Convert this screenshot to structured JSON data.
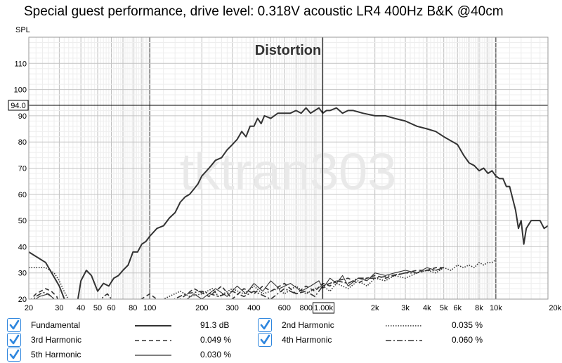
{
  "title": "Special guest performance, drive level: 0.318V acoustic LR4 400Hz B&K @40cm",
  "chart_data": {
    "type": "line",
    "title": "Distortion",
    "ylabel": "SPL",
    "x_scale": "log",
    "xlim": [
      20,
      20000
    ],
    "ylim": [
      20,
      120
    ],
    "grid": true,
    "x_tick_labels": [
      {
        "v": 20,
        "t": "20"
      },
      {
        "v": 30,
        "t": "30"
      },
      {
        "v": 40,
        "t": "40"
      },
      {
        "v": 50,
        "t": "50"
      },
      {
        "v": 60,
        "t": "60"
      },
      {
        "v": 80,
        "t": "80"
      },
      {
        "v": 100,
        "t": "100"
      },
      {
        "v": 200,
        "t": "200"
      },
      {
        "v": 300,
        "t": "300"
      },
      {
        "v": 400,
        "t": "400"
      },
      {
        "v": 600,
        "t": "600"
      },
      {
        "v": 800,
        "t": "800"
      },
      {
        "v": 2000,
        "t": "2k"
      },
      {
        "v": 3000,
        "t": "3k"
      },
      {
        "v": 4000,
        "t": "4k"
      },
      {
        "v": 5000,
        "t": "5k"
      },
      {
        "v": 6000,
        "t": "6k"
      },
      {
        "v": 8000,
        "t": "8k"
      },
      {
        "v": 10000,
        "t": "10k"
      },
      {
        "v": 20000,
        "t": "20kHz"
      }
    ],
    "y_tick_labels": [
      {
        "v": 20,
        "t": "20"
      },
      {
        "v": 30,
        "t": "30"
      },
      {
        "v": 40,
        "t": "40"
      },
      {
        "v": 50,
        "t": "50"
      },
      {
        "v": 60,
        "t": "60"
      },
      {
        "v": 70,
        "t": "70"
      },
      {
        "v": 80,
        "t": "80"
      },
      {
        "v": 90,
        "t": "90"
      },
      {
        "v": 100,
        "t": "100"
      },
      {
        "v": 110,
        "t": "110"
      }
    ],
    "cursor": {
      "x": 1000,
      "y": 94.0,
      "x_label": "1.00k",
      "y_label": "94.0"
    },
    "watermark": "tktran303",
    "series": [
      {
        "name": "Fundamental",
        "style": "solid",
        "width": 2,
        "x": [
          20,
          25,
          30,
          33,
          36,
          38,
          40,
          43,
          46,
          50,
          54,
          58,
          62,
          66,
          70,
          75,
          80,
          85,
          90,
          95,
          100,
          110,
          120,
          130,
          140,
          150,
          160,
          170,
          180,
          190,
          200,
          220,
          240,
          260,
          280,
          300,
          320,
          340,
          360,
          380,
          400,
          420,
          440,
          460,
          500,
          550,
          600,
          650,
          700,
          750,
          800,
          850,
          900,
          950,
          1000,
          1050,
          1100,
          1200,
          1300,
          1400,
          1500,
          1700,
          2000,
          2300,
          2600,
          3000,
          3500,
          4000,
          4500,
          5000,
          6000,
          6500,
          7000,
          7500,
          8000,
          8500,
          9000,
          9500,
          10000,
          10500,
          11000,
          11500,
          12000,
          13000,
          13500,
          14000,
          14500,
          15000,
          16000,
          17000,
          18000,
          19000,
          20000
        ],
        "y": [
          38,
          34,
          25,
          18,
          18,
          18,
          27,
          31,
          29,
          23,
          26,
          25,
          28,
          29,
          31,
          33,
          38,
          38,
          41,
          42,
          44,
          47,
          48,
          51,
          53,
          57,
          59,
          60,
          62,
          64,
          67,
          70,
          73,
          74,
          77,
          79,
          81,
          84,
          82,
          86,
          86,
          89,
          87,
          90,
          89,
          91,
          91,
          91,
          92,
          91,
          93,
          91,
          92,
          93,
          91,
          92,
          92,
          93,
          91,
          92,
          92,
          91,
          90,
          90,
          89,
          88,
          86,
          85,
          84,
          82,
          79,
          75,
          72,
          71,
          69,
          70,
          68,
          69,
          67,
          66,
          66,
          63,
          63,
          54,
          47,
          50,
          41,
          47,
          50,
          50,
          50,
          47,
          48
        ]
      },
      {
        "name": "2nd Harmonic",
        "style": "dotted",
        "width": 1.6,
        "x": [
          20,
          22,
          25,
          28,
          30,
          32,
          35,
          100,
          120,
          150,
          170,
          200,
          230,
          250,
          300,
          350,
          400,
          450,
          500,
          550,
          600,
          700,
          800,
          900,
          1000,
          1100,
          1200,
          1400,
          1600,
          1800,
          2000,
          2300,
          2600,
          3000,
          3500,
          4000,
          4500,
          5000,
          5500,
          6000,
          6500,
          7000,
          7500,
          8000,
          8500,
          9000,
          9500,
          10000
        ],
        "y": [
          32,
          32,
          32,
          30,
          27,
          23,
          18,
          18,
          20,
          23,
          21,
          22,
          24,
          21,
          24,
          22,
          25,
          22,
          23,
          24,
          22,
          25,
          22,
          24,
          25,
          23,
          26,
          24,
          27,
          25,
          28,
          27,
          29,
          28,
          30,
          31,
          30,
          32,
          31,
          33,
          32,
          33,
          32,
          34,
          33,
          34,
          34,
          35
        ]
      },
      {
        "name": "3rd Harmonic",
        "style": "dashed",
        "width": 1.6,
        "x": [
          20,
          22,
          25,
          27,
          29,
          30,
          34,
          80,
          100,
          120,
          150,
          180,
          220,
          260,
          300,
          350,
          400,
          450,
          500,
          600,
          700,
          800,
          900,
          1000,
          1100,
          1200,
          1400,
          1600,
          1800,
          2000,
          2300,
          2600,
          3000,
          3500,
          4000,
          4500,
          5000
        ],
        "y": [
          19,
          22,
          24,
          23,
          21,
          18,
          18,
          18,
          22,
          18,
          20,
          24,
          21,
          25,
          20,
          24,
          22,
          25,
          23,
          26,
          22,
          25,
          23,
          26,
          25,
          27,
          28,
          26,
          28,
          29,
          28,
          29,
          30,
          31,
          31,
          32,
          32
        ]
      },
      {
        "name": "4th Harmonic",
        "style": "dashdot",
        "width": 1.6,
        "x": [
          20,
          22,
          24,
          25,
          27,
          29,
          31,
          33,
          35,
          50,
          54,
          57,
          60,
          65,
          90,
          130,
          160,
          200,
          250,
          300,
          350,
          400,
          500,
          600,
          700,
          800,
          900,
          1000,
          1100,
          1200,
          1400,
          1600,
          2000,
          2500,
          3000,
          3500,
          4000,
          4500,
          5000
        ],
        "y": [
          18,
          21,
          22.5,
          22.5,
          21,
          19,
          20,
          19,
          18,
          18,
          21,
          22,
          20,
          18,
          18,
          19,
          22,
          23,
          21,
          23,
          21,
          23,
          20,
          24,
          22,
          23,
          21,
          25,
          26,
          27,
          26,
          28,
          28,
          29,
          30,
          30,
          31,
          31,
          32
        ]
      },
      {
        "name": "5th Harmonic",
        "style": "solid-thin",
        "width": 1.1,
        "x": [
          20,
          23,
          26,
          28,
          30,
          55,
          60,
          64,
          70,
          150,
          180,
          200,
          240,
          280,
          320,
          360,
          400,
          450,
          500,
          560,
          650,
          750,
          850,
          950,
          1000,
          1100,
          1200,
          1300,
          1400,
          1600,
          1800,
          2000,
          2300,
          2600,
          3000,
          3500,
          4000,
          4500,
          5000
        ],
        "y": [
          18,
          21,
          22,
          20,
          18,
          18,
          20,
          19,
          18,
          18,
          22,
          20,
          24,
          21,
          25,
          22,
          26,
          23,
          27,
          24,
          26,
          23,
          25,
          27,
          24,
          28,
          26,
          29,
          25,
          28,
          27,
          30,
          29,
          30,
          31,
          30,
          32,
          31,
          32
        ]
      }
    ]
  },
  "legend": [
    {
      "label": "Fundamental",
      "value": "91.3 dB",
      "style": "solid",
      "checked": true
    },
    {
      "label": "2nd Harmonic",
      "value": "0.035 %",
      "style": "dotted",
      "checked": true
    },
    {
      "label": "3rd Harmonic",
      "value": "0.049 %",
      "style": "dashed",
      "checked": true
    },
    {
      "label": "4th Harmonic",
      "value": "0.060 %",
      "style": "dashdot",
      "checked": true
    },
    {
      "label": "5th Harmonic",
      "value": "0.030 %",
      "style": "solid-thin",
      "checked": true
    }
  ]
}
